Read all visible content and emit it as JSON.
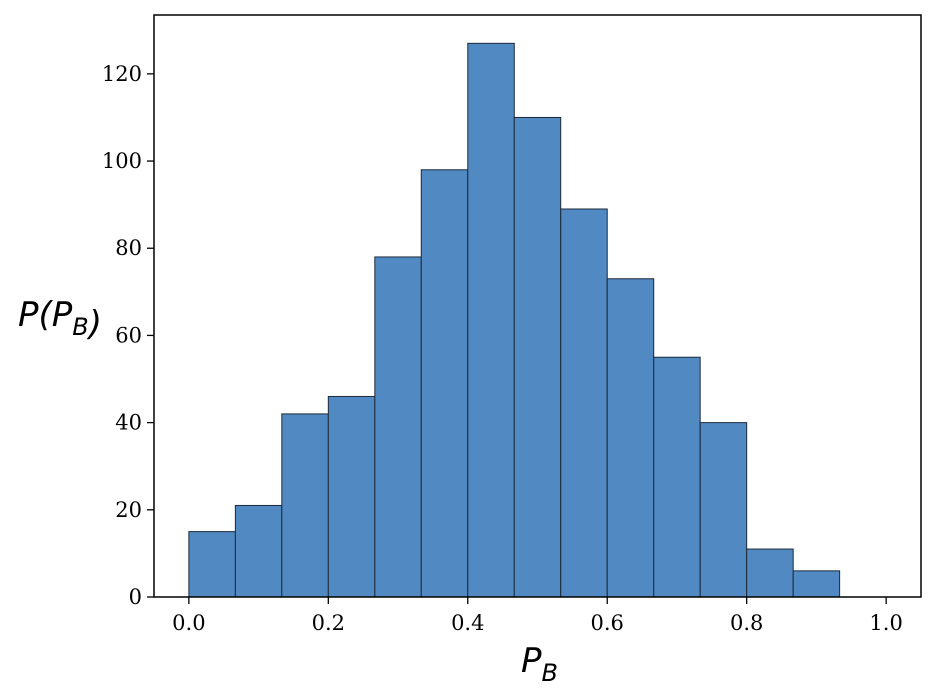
{
  "chart_data": {
    "type": "bar",
    "title": "",
    "xlabel": "P_B",
    "ylabel": "P(P_B)",
    "xlim": [
      -0.05,
      1.05
    ],
    "ylim": [
      0,
      133.5
    ],
    "grid": false,
    "bar_color": "#5189c3",
    "edge_color": "#1c2a3a",
    "bin_edges": [
      0.0,
      0.0667,
      0.1333,
      0.2,
      0.2667,
      0.3333,
      0.4,
      0.4667,
      0.5333,
      0.6,
      0.6667,
      0.7333,
      0.8,
      0.8667,
      0.9333,
      1.0
    ],
    "values": [
      15,
      21,
      42,
      46,
      78,
      98,
      127,
      110,
      89,
      73,
      55,
      40,
      11,
      6,
      0
    ],
    "x_ticks": [
      0.0,
      0.2,
      0.4,
      0.6,
      0.8,
      1.0
    ],
    "x_tick_labels": [
      "0.0",
      "0.2",
      "0.4",
      "0.6",
      "0.8",
      "1.0"
    ],
    "y_ticks": [
      0,
      20,
      40,
      60,
      80,
      100,
      120
    ],
    "y_tick_labels": [
      "0",
      "20",
      "40",
      "60",
      "80",
      "100",
      "120"
    ]
  }
}
